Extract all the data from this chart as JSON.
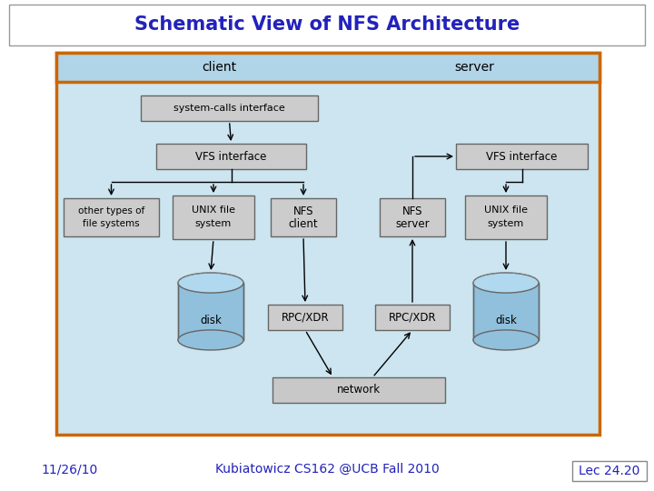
{
  "title": "Schematic View of NFS Architecture",
  "title_color": "#2222bb",
  "title_fontsize": 15,
  "bg_color": "#ffffff",
  "diagram_bg": "#cce5f0",
  "diagram_border_color": "#cc6600",
  "header_bg": "#b0d4e8",
  "box_fill": "#cccccc",
  "box_edge": "#666666",
  "cylinder_top": "#b0d8ee",
  "cylinder_body": "#90c0dc",
  "footer_left": "11/26/10",
  "footer_center": "Kubiatowicz CS162 @UCB Fall 2010",
  "footer_right": "Lec 24.20",
  "footer_color": "#2222bb",
  "footer_fontsize": 10
}
